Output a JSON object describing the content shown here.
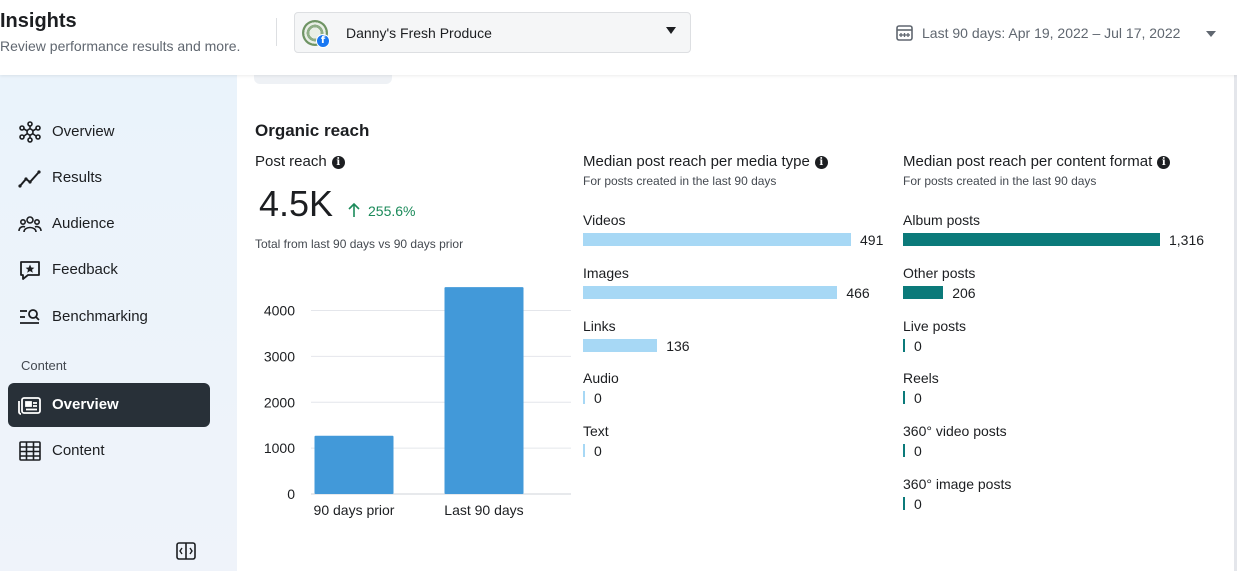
{
  "header": {
    "title": "Insights",
    "subtitle": "Review performance results and more.",
    "page_selector": {
      "name": "Danny's Fresh Produce",
      "avatar_icon": "page-avatar",
      "badge_icon": "facebook-icon",
      "badge_glyph": "f"
    },
    "date_range": "Last 90 days: Apr 19, 2022 – Jul 17, 2022"
  },
  "sidebar": {
    "items": [
      {
        "label": "Overview",
        "icon": "network-icon"
      },
      {
        "label": "Results",
        "icon": "trend-line-icon"
      },
      {
        "label": "Audience",
        "icon": "people-icon"
      },
      {
        "label": "Feedback",
        "icon": "star-comment-icon"
      },
      {
        "label": "Benchmarking",
        "icon": "search-list-icon"
      }
    ],
    "section_label": "Content",
    "content_items": [
      {
        "label": "Overview",
        "icon": "content-overview-icon",
        "active": true
      },
      {
        "label": "Content",
        "icon": "table-icon",
        "active": false
      }
    ]
  },
  "main": {
    "section_title": "Organic reach",
    "post_reach": {
      "title": "Post reach",
      "value": "4.5K",
      "change": "255.6%",
      "note": "Total from last 90 days vs 90 days prior"
    },
    "media_type": {
      "title": "Median post reach per media type",
      "subtitle": "For posts created in the last 90 days",
      "color": "#a7d8f5"
    },
    "content_format": {
      "title": "Median post reach per content format",
      "subtitle": "For posts created in the last 90 days",
      "color": "#0b7a7a"
    }
  },
  "colors": {
    "accent_green": "#1b8a5a",
    "bar_blue": "#4299d9",
    "active_nav": "#283038"
  },
  "chart_data": [
    {
      "type": "bar",
      "title": "Post reach",
      "categories": [
        "90 days prior",
        "Last 90 days"
      ],
      "values": [
        1270,
        4510
      ],
      "yticks": [
        0,
        1000,
        2000,
        3000,
        4000
      ],
      "ylim": [
        0,
        4600
      ],
      "xlabel": "",
      "ylabel": "",
      "grid": true
    },
    {
      "type": "bar",
      "orientation": "horizontal",
      "title": "Median post reach per media type",
      "categories": [
        "Videos",
        "Images",
        "Links",
        "Audio",
        "Text"
      ],
      "values": [
        491,
        466,
        136,
        0,
        0
      ],
      "value_labels": [
        "491",
        "466",
        "136",
        "0",
        "0"
      ]
    },
    {
      "type": "bar",
      "orientation": "horizontal",
      "title": "Median post reach per content format",
      "categories": [
        "Album posts",
        "Other posts",
        "Live posts",
        "Reels",
        "360° video posts",
        "360° image posts"
      ],
      "values": [
        1316,
        206,
        0,
        0,
        0,
        0
      ],
      "value_labels": [
        "1,316",
        "206",
        "0",
        "0",
        "0",
        "0"
      ]
    }
  ]
}
